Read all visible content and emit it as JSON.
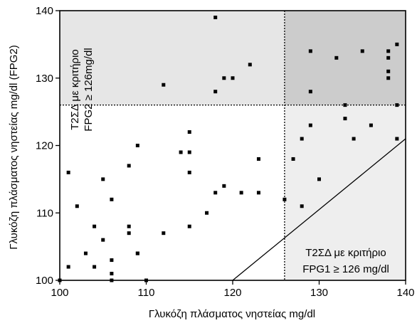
{
  "chart_data": {
    "type": "scatter",
    "title": "",
    "xlabel": "Γλυκόζη πλάσματος νηστείας mg/dl",
    "ylabel": "Γλυκόζη πλάσματος νηστείας mg/dl (FPG2)",
    "xlim": [
      100,
      140
    ],
    "ylim": [
      100,
      140
    ],
    "xticks": [
      "100",
      "110",
      "120",
      "130",
      "140"
    ],
    "yticks": [
      "100",
      "110",
      "120",
      "130",
      "140"
    ],
    "grid": false,
    "threshold_x": 126,
    "threshold_y": 126,
    "diagonal_line": [
      [
        120,
        100
      ],
      [
        140,
        121
      ]
    ],
    "region_colors": {
      "top_left": "#e6e6e6",
      "top_right": "#cccccc",
      "bottom_right": "#eeeeee",
      "bottom_left": "#ffffff"
    },
    "annotations": {
      "fpg2_line1": "Τ2ΣΔ με κριτήριο",
      "fpg2_line2": "FPG2 ≥ 126mg/dl",
      "fpg1_line1": "Τ2ΣΔ με κριτήριο",
      "fpg1_line2": "FPG1 ≥ 126 mg/dl"
    },
    "points": [
      {
        "x": 100,
        "y": 100
      },
      {
        "x": 101,
        "y": 102
      },
      {
        "x": 101,
        "y": 116
      },
      {
        "x": 102,
        "y": 111
      },
      {
        "x": 103,
        "y": 104
      },
      {
        "x": 104,
        "y": 102
      },
      {
        "x": 104,
        "y": 108
      },
      {
        "x": 105,
        "y": 106
      },
      {
        "x": 105,
        "y": 115
      },
      {
        "x": 106,
        "y": 103
      },
      {
        "x": 106,
        "y": 101
      },
      {
        "x": 106,
        "y": 100
      },
      {
        "x": 106,
        "y": 112
      },
      {
        "x": 108,
        "y": 108
      },
      {
        "x": 108,
        "y": 107
      },
      {
        "x": 108,
        "y": 117
      },
      {
        "x": 109,
        "y": 104
      },
      {
        "x": 109,
        "y": 104
      },
      {
        "x": 109,
        "y": 120
      },
      {
        "x": 110,
        "y": 100
      },
      {
        "x": 112,
        "y": 107
      },
      {
        "x": 112,
        "y": 129
      },
      {
        "x": 114,
        "y": 119
      },
      {
        "x": 115,
        "y": 122
      },
      {
        "x": 115,
        "y": 119
      },
      {
        "x": 115,
        "y": 116
      },
      {
        "x": 115,
        "y": 108
      },
      {
        "x": 117,
        "y": 110
      },
      {
        "x": 118,
        "y": 139
      },
      {
        "x": 118,
        "y": 128
      },
      {
        "x": 118,
        "y": 113
      },
      {
        "x": 119,
        "y": 130
      },
      {
        "x": 119,
        "y": 114
      },
      {
        "x": 120,
        "y": 130
      },
      {
        "x": 121,
        "y": 113
      },
      {
        "x": 122,
        "y": 132
      },
      {
        "x": 123,
        "y": 118
      },
      {
        "x": 123,
        "y": 113
      },
      {
        "x": 126,
        "y": 112
      },
      {
        "x": 127,
        "y": 118
      },
      {
        "x": 128,
        "y": 121
      },
      {
        "x": 128,
        "y": 111
      },
      {
        "x": 129,
        "y": 134
      },
      {
        "x": 129,
        "y": 128
      },
      {
        "x": 129,
        "y": 123
      },
      {
        "x": 130,
        "y": 115
      },
      {
        "x": 132,
        "y": 133
      },
      {
        "x": 133,
        "y": 126
      },
      {
        "x": 133,
        "y": 124
      },
      {
        "x": 134,
        "y": 121
      },
      {
        "x": 135,
        "y": 134
      },
      {
        "x": 136,
        "y": 123
      },
      {
        "x": 138,
        "y": 134
      },
      {
        "x": 138,
        "y": 133
      },
      {
        "x": 138,
        "y": 131
      },
      {
        "x": 138,
        "y": 130
      },
      {
        "x": 139,
        "y": 135
      },
      {
        "x": 139,
        "y": 126
      },
      {
        "x": 139,
        "y": 121
      }
    ]
  }
}
